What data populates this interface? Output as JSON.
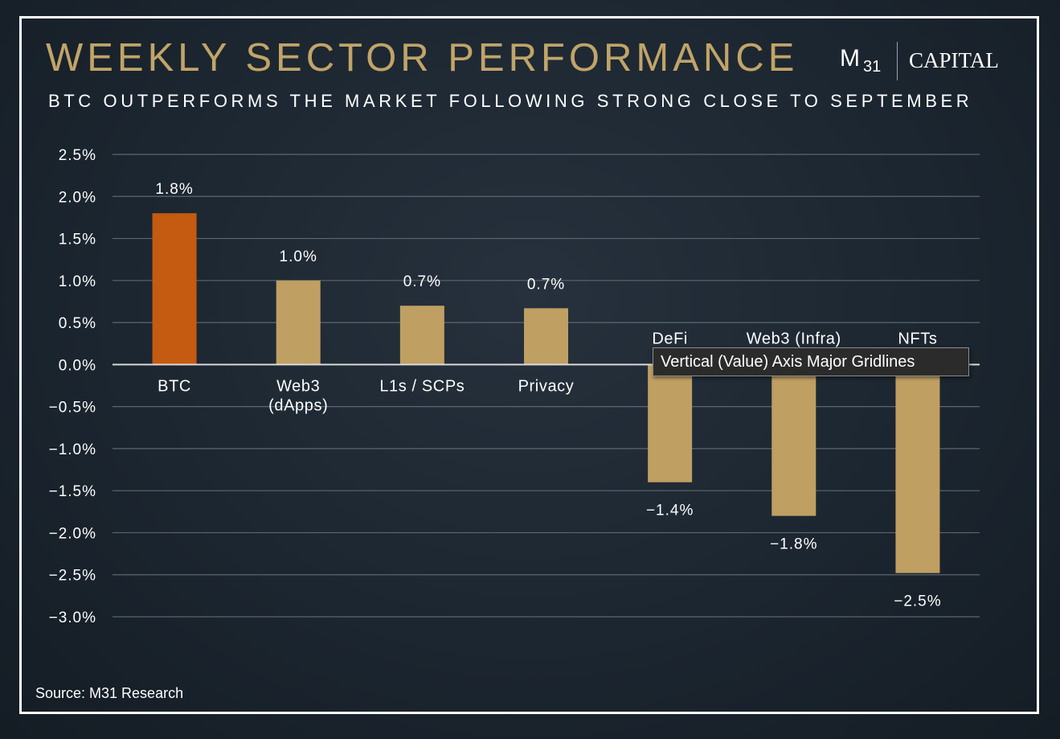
{
  "header": {
    "title": "WEEKLY SECTOR PERFORMANCE",
    "subtitle": "BTC OUTPERFORMS THE MARKET FOLLOWING STRONG CLOSE TO SEPTEMBER"
  },
  "logo": {
    "m": "M",
    "sub": "31",
    "capital": "CAPITAL"
  },
  "source": "Source: M31 Research",
  "tooltip": "Vertical (Value) Axis Major Gridlines",
  "colors": {
    "background": "#1c2630",
    "title": "#c1a468",
    "highlight_bar": "#c55a11",
    "bar": "#bf9f62",
    "gridline": "#5d6670",
    "zero_line": "#d9d9d9",
    "text": "#ffffff"
  },
  "chart_data": {
    "type": "bar",
    "categories": [
      "BTC",
      "Web3\n(dApps)",
      "L1s / SCPs",
      "Privacy",
      "DeFi",
      "Web3 (Infra)",
      "NFTs"
    ],
    "values": [
      1.8,
      1.0,
      0.7,
      0.67,
      -1.4,
      -1.8,
      -2.48
    ],
    "data_labels": [
      "1.8%",
      "1.0%",
      "0.7%",
      "0.7%",
      "−1.4%",
      "−1.8%",
      "−2.5%"
    ],
    "highlight_index": 0,
    "ylim": [
      -3.0,
      2.5
    ],
    "yticks": [
      2.5,
      2.0,
      1.5,
      1.0,
      0.5,
      0.0,
      -0.5,
      -1.0,
      -1.5,
      -2.0,
      -2.5,
      -3.0
    ],
    "ytick_labels": [
      "2.5%",
      "2.0%",
      "1.5%",
      "1.0%",
      "0.5%",
      "0.0%",
      "−0.5%",
      "−1.0%",
      "−1.5%",
      "−2.0%",
      "−2.5%",
      "−3.0%"
    ],
    "grid": true,
    "legend": "none",
    "xlabel": "",
    "ylabel": ""
  }
}
